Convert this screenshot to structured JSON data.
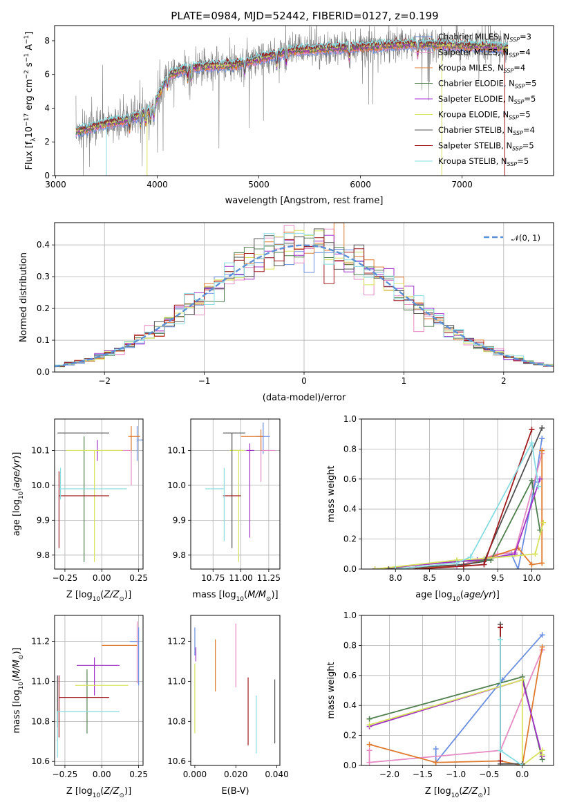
{
  "figure": {
    "title": "PLATE=0984, MJD=52442, FIBERID=0127, z=0.199"
  },
  "colors": {
    "Chabrier MILES": "#6a8ee0",
    "Salpeter MILES": "#e58ac3",
    "Kroupa MILES": "#e07a2e",
    "Chabrier ELODIE": "#4f7f4f",
    "Salpeter ELODIE": "#a02fc8",
    "Kroupa ELODIE": "#d8e25a",
    "Chabrier STELIB": "#505050",
    "Salpeter STELIB": "#a0191e",
    "Kroupa STELIB": "#86dce0",
    "data": "#7a7a7a",
    "normal": "#5b8fd6"
  },
  "chart_data": [
    {
      "id": "spectrum",
      "type": "line",
      "title": "PLATE=0984, MJD=52442, FIBERID=0127, z=0.199",
      "xlabel": "wavelength [Angstrom, rest frame]",
      "ylabel": "Flux [f_λ10^-17 erg cm^-2 s^-1 A^-1]",
      "xlim": [
        2990,
        7900
      ],
      "ylim": [
        0,
        8.9
      ],
      "xticks": [
        3000,
        4000,
        5000,
        6000,
        7000
      ],
      "yticks": [
        0,
        2,
        4,
        6,
        8
      ],
      "grid": false,
      "legend_placement": "upper-right",
      "continuum_anchors": [
        [
          3200,
          2.6
        ],
        [
          3500,
          3.1
        ],
        [
          3700,
          3.3
        ],
        [
          3950,
          3.9
        ],
        [
          4100,
          5.9
        ],
        [
          4300,
          6.4
        ],
        [
          4800,
          6.6
        ],
        [
          5300,
          7.4
        ],
        [
          5900,
          7.6
        ],
        [
          6500,
          7.8
        ],
        [
          7000,
          7.7
        ],
        [
          7450,
          7.6
        ]
      ],
      "series": [
        {
          "name": "Chabrier MILES, N_SSP=3",
          "legend_main": "Chabrier MILES, N",
          "legend_sub": "SSP",
          "legend_tail": "=3"
        },
        {
          "name": "Salpeter MILES, N_SSP=4",
          "legend_main": "Salpeter MILES, N",
          "legend_sub": "SSP",
          "legend_tail": "=4"
        },
        {
          "name": "Kroupa MILES, N_SSP=4",
          "legend_main": "Kroupa MILES, N",
          "legend_sub": "SSP",
          "legend_tail": "=4"
        },
        {
          "name": "Chabrier ELODIE, N_SSP=5",
          "legend_main": "Chabrier ELODIE, N",
          "legend_sub": "SSP",
          "legend_tail": "=5"
        },
        {
          "name": "Salpeter ELODIE, N_SSP=5",
          "legend_main": "Salpeter ELODIE, N",
          "legend_sub": "SSP",
          "legend_tail": "=5"
        },
        {
          "name": "Kroupa ELODIE, N_SSP=5",
          "legend_main": "Kroupa ELODIE, N",
          "legend_sub": "SSP",
          "legend_tail": "=5"
        },
        {
          "name": "Chabrier STELIB, N_SSP=4",
          "legend_main": "Chabrier STELIB, N",
          "legend_sub": "SSP",
          "legend_tail": "=4"
        },
        {
          "name": "Salpeter STELIB, N_SSP=5",
          "legend_main": "Salpeter STELIB, N",
          "legend_sub": "SSP",
          "legend_tail": "=5"
        },
        {
          "name": "Kroupa STELIB, N_SSP=5",
          "legend_main": "Kroupa STELIB, N",
          "legend_sub": "SSP",
          "legend_tail": "=5"
        }
      ]
    },
    {
      "id": "residuals",
      "type": "line",
      "xlabel": "(data-model)/error",
      "ylabel": "Normed distribution",
      "xlim": [
        -2.5,
        2.5
      ],
      "ylim": [
        0,
        0.47
      ],
      "xticks": [
        -2,
        -1,
        0,
        1,
        2
      ],
      "yticks": [
        0.0,
        0.1,
        0.2,
        0.3,
        0.4
      ],
      "grid": true,
      "bin_width": 0.1,
      "legend": "N(0,1)",
      "legend_placement": "upper-right"
    },
    {
      "id": "age_vs_Z",
      "type": "scatter",
      "xlabel": "Z [log10(Z/Z⊙)]",
      "ylabel": "age [log10(age/yr)]",
      "xlim": [
        -0.32,
        0.28
      ],
      "ylim": [
        9.76,
        10.19
      ],
      "xticks": [
        -0.25,
        0.0,
        0.25
      ],
      "yticks": [
        9.8,
        9.9,
        10.0,
        10.1
      ],
      "grid": true,
      "points": [
        {
          "model": "Chabrier MILES",
          "x": 0.24,
          "xerr": [
            0.0,
            0.04
          ],
          "y": 10.13,
          "yerr": [
            0.06,
            0.04
          ]
        },
        {
          "model": "Salpeter MILES",
          "x": 0.2,
          "xerr": [
            0.18,
            0.0
          ],
          "y": 10.1,
          "yerr": [
            0.1,
            0.04
          ]
        },
        {
          "model": "Kroupa MILES",
          "x": 0.2,
          "xerr": [
            0.02,
            0.06
          ],
          "y": 10.14,
          "yerr": [
            0.04,
            0.03
          ]
        },
        {
          "model": "Chabrier ELODIE",
          "x": -0.12,
          "xerr": [
            0.0,
            0.0
          ],
          "y": 10.08,
          "yerr": [
            0.3,
            0.06
          ]
        },
        {
          "model": "Salpeter ELODIE",
          "x": -0.03,
          "xerr": [
            0.0,
            0.0
          ],
          "y": 10.1,
          "yerr": [
            0.03,
            0.03
          ]
        },
        {
          "model": "Kroupa ELODIE",
          "x": -0.05,
          "xerr": [
            0.19,
            0.19
          ],
          "y": 10.1,
          "yerr": [
            0.32,
            0.0
          ]
        },
        {
          "model": "Chabrier STELIB",
          "x": -0.02,
          "xerr": [
            0.28,
            0.07
          ],
          "y": 10.15,
          "yerr": [
            0.0,
            0.0
          ]
        },
        {
          "model": "Salpeter STELIB",
          "x": -0.29,
          "xerr": [
            0.0,
            0.34
          ],
          "y": 9.97,
          "yerr": [
            0.15,
            0.07
          ]
        },
        {
          "model": "Kroupa STELIB",
          "x": -0.28,
          "xerr": [
            0.01,
            0.45
          ],
          "y": 9.99,
          "yerr": [
            0.03,
            0.06
          ]
        }
      ]
    },
    {
      "id": "age_vs_mass",
      "type": "scatter",
      "xlabel": "mass [log10(M/M⊙)]",
      "ylabel": "",
      "xlim": [
        10.55,
        11.35
      ],
      "ylim": [
        9.76,
        10.19
      ],
      "xticks": [
        10.75,
        11.0,
        11.25
      ],
      "yticks": [
        9.8,
        9.9,
        10.0,
        10.1
      ],
      "grid": true,
      "points": [
        {
          "model": "Chabrier MILES",
          "x": 11.2,
          "xerr": [
            0.06,
            0.06
          ],
          "y": 10.14,
          "yerr": [
            0.05,
            0.04
          ]
        },
        {
          "model": "Salpeter MILES",
          "x": 11.18,
          "xerr": [
            0.0,
            0.13
          ],
          "y": 10.1,
          "yerr": [
            0.09,
            0.03
          ]
        },
        {
          "model": "Kroupa MILES",
          "x": 11.18,
          "xerr": [
            0.18,
            0.02
          ],
          "y": 10.14,
          "yerr": [
            0.04,
            0.02
          ]
        },
        {
          "model": "Chabrier ELODIE",
          "x": 10.95,
          "xerr": [
            0.05,
            0.05
          ],
          "y": 10.1,
          "yerr": [
            0.0,
            0.0
          ]
        },
        {
          "model": "Salpeter ELODIE",
          "x": 11.08,
          "xerr": [
            0.03,
            0.04
          ],
          "y": 10.1,
          "yerr": [
            0.25,
            0.02
          ]
        },
        {
          "model": "Kroupa ELODIE",
          "x": 10.98,
          "xerr": [
            0.08,
            0.05
          ],
          "y": 10.1,
          "yerr": [
            0.32,
            0.0
          ]
        },
        {
          "model": "Chabrier STELIB",
          "x": 10.92,
          "xerr": [
            0.08,
            0.12
          ],
          "y": 10.15,
          "yerr": [
            0.33,
            0.0
          ]
        },
        {
          "model": "Salpeter STELIB",
          "x": 10.92,
          "xerr": [
            0.08,
            0.08
          ],
          "y": 9.97,
          "yerr": [
            0.0,
            0.0
          ]
        },
        {
          "model": "Kroupa STELIB",
          "x": 10.85,
          "xerr": [
            0.17,
            0.0
          ],
          "y": 9.99,
          "yerr": [
            0.15,
            0.06
          ]
        }
      ]
    },
    {
      "id": "mass_weight_vs_age",
      "type": "line",
      "xlabel": "age [log10(age/yr)]",
      "ylabel": "mass weight",
      "xlim": [
        7.5,
        10.32
      ],
      "ylim": [
        0,
        1.0
      ],
      "xticks": [
        8.0,
        8.5,
        9.0,
        9.5,
        10.0
      ],
      "yticks": [
        0.0,
        0.2,
        0.4,
        0.6,
        0.8,
        1.0
      ],
      "grid": true,
      "series": [
        {
          "model": "Chabrier MILES",
          "x": [
            7.7,
            8.9,
            9.7,
            9.8,
            10.05,
            10.15
          ],
          "y": [
            0.0,
            0.02,
            0.1,
            0.0,
            0.58,
            0.87
          ]
        },
        {
          "model": "Salpeter MILES",
          "x": [
            7.7,
            8.9,
            9.5,
            9.75,
            10.15
          ],
          "y": [
            0.0,
            0.02,
            0.1,
            0.11,
            0.77
          ]
        },
        {
          "model": "Kroupa MILES",
          "x": [
            7.7,
            9.0,
            9.8,
            10.0,
            10.15,
            10.15
          ],
          "y": [
            0.0,
            0.02,
            0.14,
            0.03,
            0.04,
            0.79
          ]
        },
        {
          "model": "Chabrier ELODIE",
          "x": [
            7.7,
            8.9,
            9.4,
            10.0,
            10.12
          ],
          "y": [
            0.0,
            0.05,
            0.06,
            0.59,
            0.26
          ]
        },
        {
          "model": "Salpeter ELODIE",
          "x": [
            7.7,
            8.9,
            9.2,
            9.75,
            10.12
          ],
          "y": [
            0.0,
            0.05,
            0.06,
            0.1,
            0.6
          ]
        },
        {
          "model": "Kroupa ELODIE",
          "x": [
            7.7,
            8.9,
            9.3,
            10.05,
            10.17
          ],
          "y": [
            0.0,
            0.06,
            0.07,
            0.1,
            0.31
          ]
        },
        {
          "model": "Chabrier STELIB",
          "x": [
            7.9,
            9.0,
            9.3,
            10.15
          ],
          "y": [
            0.0,
            0.03,
            0.05,
            0.94
          ]
        },
        {
          "model": "Salpeter STELIB",
          "x": [
            8.3,
            9.0,
            9.3,
            10.0
          ],
          "y": [
            0.0,
            0.02,
            0.03,
            0.93
          ]
        },
        {
          "model": "Kroupa STELIB",
          "x": [
            8.0,
            8.9,
            9.1,
            10.0,
            10.1
          ],
          "y": [
            0.0,
            0.04,
            0.08,
            0.84,
            0.55
          ]
        }
      ]
    },
    {
      "id": "mass_vs_Z",
      "type": "scatter",
      "xlabel": "Z [log10(Z/Z⊙)]",
      "ylabel": "mass [log10(M/M⊙)]",
      "xlim": [
        -0.32,
        0.28
      ],
      "ylim": [
        10.58,
        11.33
      ],
      "xticks": [
        -0.25,
        0.0,
        0.25
      ],
      "yticks": [
        10.6,
        10.8,
        11.0,
        11.2
      ],
      "grid": true,
      "points": [
        {
          "model": "Chabrier MILES",
          "x": 0.25,
          "xerr": [
            0.06,
            0.0
          ],
          "y": 11.2,
          "yerr": [
            0.22,
            0.07
          ]
        },
        {
          "model": "Salpeter MILES",
          "x": 0.24,
          "xerr": [
            0.0,
            0.0
          ],
          "y": 11.17,
          "yerr": [
            0.18,
            0.13
          ]
        },
        {
          "model": "Kroupa MILES",
          "x": 0.0,
          "xerr": [
            0.0,
            0.24
          ],
          "y": 11.18,
          "yerr": [
            0.0,
            0.0
          ]
        },
        {
          "model": "Chabrier ELODIE",
          "x": -0.1,
          "xerr": [
            0.0,
            0.0
          ],
          "y": 10.95,
          "yerr": [
            0.21,
            0.11
          ]
        },
        {
          "model": "Salpeter ELODIE",
          "x": -0.05,
          "xerr": [
            0.12,
            0.17
          ],
          "y": 11.08,
          "yerr": [
            0.15,
            0.04
          ]
        },
        {
          "model": "Kroupa ELODIE",
          "x": 0.0,
          "xerr": [
            0.18,
            0.18
          ],
          "y": 10.98,
          "yerr": [
            0.0,
            0.0
          ]
        },
        {
          "model": "Chabrier STELIB",
          "x": -0.3,
          "xerr": [
            0.0,
            0.0
          ],
          "y": 10.92,
          "yerr": [
            0.15,
            0.11
          ]
        },
        {
          "model": "Salpeter STELIB",
          "x": -0.29,
          "xerr": [
            0.0,
            0.34
          ],
          "y": 10.92,
          "yerr": [
            0.2,
            0.11
          ]
        },
        {
          "model": "Kroupa STELIB",
          "x": -0.3,
          "xerr": [
            0.0,
            0.42
          ],
          "y": 10.85,
          "yerr": [
            0.23,
            0.0
          ]
        }
      ]
    },
    {
      "id": "mass_vs_ebv",
      "type": "scatter",
      "xlabel": "E(B-V)",
      "ylabel": "",
      "xlim": [
        -0.002,
        0.0415
      ],
      "ylim": [
        10.58,
        11.33
      ],
      "xticks": [
        0.0,
        0.02,
        0.04
      ],
      "yticks": [
        10.6,
        10.8,
        11.0,
        11.2
      ],
      "grid": false,
      "points": [
        {
          "model": "Chabrier MILES",
          "x": 0.0,
          "y": 11.18,
          "yerr": [
            0.05,
            0.09
          ]
        },
        {
          "model": "Salpeter ELODIE",
          "x": 0.0005,
          "y": 11.15,
          "yerr": [
            0.05,
            0.02
          ]
        },
        {
          "model": "Kroupa ELODIE",
          "x": 0.0,
          "y": 10.98,
          "yerr": [
            0.24,
            0.11
          ]
        },
        {
          "model": "Kroupa MILES",
          "x": 0.01,
          "y": 11.08,
          "yerr": [
            0.13,
            0.13
          ]
        },
        {
          "model": "Salpeter MILES",
          "x": 0.02,
          "y": 11.13,
          "yerr": [
            0.16,
            0.16
          ]
        },
        {
          "model": "Salpeter STELIB",
          "x": 0.026,
          "y": 10.9,
          "yerr": [
            0.22,
            0.12
          ]
        },
        {
          "model": "Kroupa STELIB",
          "x": 0.03,
          "y": 10.8,
          "yerr": [
            0.16,
            0.13
          ]
        },
        {
          "model": "Chabrier STELIB",
          "x": 0.039,
          "y": 10.85,
          "yerr": [
            0.16,
            0.16
          ]
        }
      ]
    },
    {
      "id": "mass_weight_vs_Z",
      "type": "line",
      "xlabel": "Z [log10(Z/Z⊙)]",
      "ylabel": "mass weight",
      "xlim": [
        -2.42,
        0.47
      ],
      "ylim": [
        0,
        1.0
      ],
      "xticks": [
        -2.0,
        -1.5,
        -1.0,
        -0.5,
        0.0
      ],
      "yticks": [
        0.0,
        0.2,
        0.4,
        0.6,
        0.8,
        1.0
      ],
      "grid": true,
      "series": [
        {
          "model": "Chabrier MILES",
          "x": [
            -1.3,
            -1.3,
            -0.3,
            0.3
          ],
          "y": [
            0.11,
            0.02,
            0.57,
            0.87
          ]
        },
        {
          "model": "Salpeter MILES",
          "x": [
            -2.3,
            -2.3,
            -0.33,
            0.3
          ],
          "y": [
            0.1,
            0.02,
            0.1,
            0.77
          ]
        },
        {
          "model": "Kroupa MILES",
          "x": [
            -2.3,
            -1.3,
            -0.33,
            0.0,
            0.3
          ],
          "y": [
            0.14,
            0.02,
            0.03,
            0.0,
            0.79
          ]
        },
        {
          "model": "Chabrier ELODIE",
          "x": [
            -2.3,
            0.0,
            0.3
          ],
          "y": [
            0.31,
            0.59,
            0.04
          ]
        },
        {
          "model": "Salpeter ELODIE",
          "x": [
            -2.3,
            0.0,
            0.3
          ],
          "y": [
            0.26,
            0.57,
            0.06
          ]
        },
        {
          "model": "Kroupa ELODIE",
          "x": [
            -2.3,
            0.0,
            0.0,
            0.3,
            0.3
          ],
          "y": [
            0.27,
            0.57,
            0.0,
            0.1,
            0.07
          ]
        },
        {
          "model": "Chabrier STELIB",
          "x": [
            -0.33,
            -0.33,
            0.0
          ],
          "y": [
            0.94,
            0.01,
            0.01
          ]
        },
        {
          "model": "Salpeter STELIB",
          "x": [
            -0.33,
            -0.33
          ],
          "y": [
            0.92,
            0.03
          ]
        },
        {
          "model": "Kroupa STELIB",
          "x": [
            -0.33,
            -0.33,
            0.0
          ],
          "y": [
            0.84,
            0.1,
            0.0
          ]
        }
      ]
    }
  ]
}
